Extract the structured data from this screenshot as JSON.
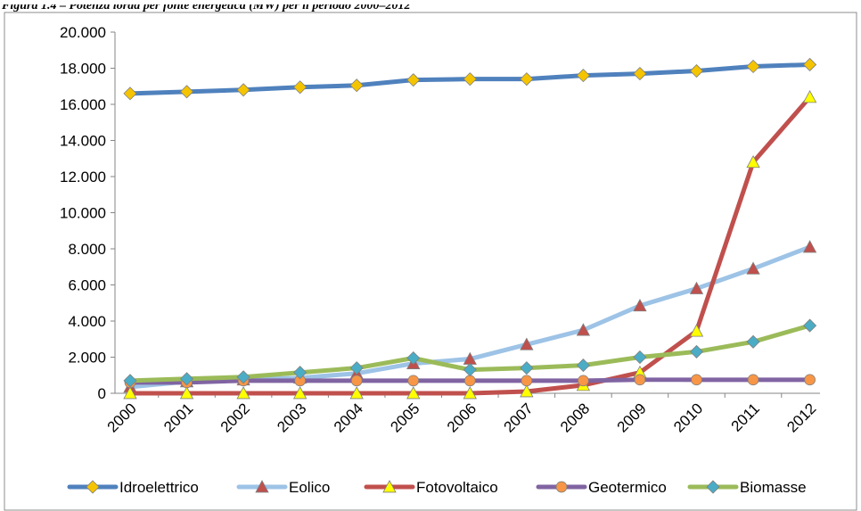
{
  "caption": "Figura 1.4 – Potenza lorda per fonte energetica (MW) per il periodo 2000–2012",
  "chart_data": {
    "type": "line",
    "title": "",
    "xlabel": "",
    "ylabel": "",
    "categories": [
      "2000",
      "2001",
      "2002",
      "2003",
      "2004",
      "2005",
      "2006",
      "2007",
      "2008",
      "2009",
      "2010",
      "2011",
      "2012"
    ],
    "ylim": [
      0,
      20000
    ],
    "yticks": [
      0,
      2000,
      4000,
      6000,
      8000,
      10000,
      12000,
      14000,
      16000,
      18000,
      20000
    ],
    "ytick_labels": [
      "0",
      "2.000",
      "4.000",
      "6.000",
      "8.000",
      "10.000",
      "12.000",
      "14.000",
      "16.000",
      "18.000",
      "20.000"
    ],
    "grid": false,
    "legend_position": "bottom",
    "series": [
      {
        "name": "Idroelettrico",
        "color": "#4f81bd",
        "marker": "diamond",
        "marker_color": "#f5c400",
        "values": [
          16600,
          16700,
          16800,
          16950,
          17050,
          17350,
          17400,
          17400,
          17600,
          17700,
          17850,
          18100,
          18200
        ]
      },
      {
        "name": "Eolico",
        "color": "#9dc3e6",
        "marker": "triangle",
        "marker_color": "#c0504d",
        "values": [
          350,
          650,
          750,
          850,
          1100,
          1650,
          1900,
          2700,
          3500,
          4850,
          5800,
          6900,
          8100
        ]
      },
      {
        "name": "Fotovoltaico",
        "color": "#c0504d",
        "marker": "triangle",
        "marker_color": "#ffff00",
        "values": [
          0,
          0,
          0,
          0,
          0,
          0,
          0,
          100,
          450,
          1150,
          3450,
          12800,
          16400
        ]
      },
      {
        "name": "Geotermico",
        "color": "#8064a2",
        "marker": "circle",
        "marker_color": "#f79646",
        "values": [
          600,
          600,
          700,
          700,
          700,
          700,
          700,
          700,
          700,
          750,
          750,
          750,
          750
        ]
      },
      {
        "name": "Biomasse",
        "color": "#9bbb59",
        "marker": "diamond",
        "marker_color": "#4bacc6",
        "values": [
          700,
          800,
          900,
          1150,
          1400,
          1950,
          1300,
          1400,
          1550,
          2000,
          2300,
          2850,
          3750
        ]
      }
    ]
  }
}
